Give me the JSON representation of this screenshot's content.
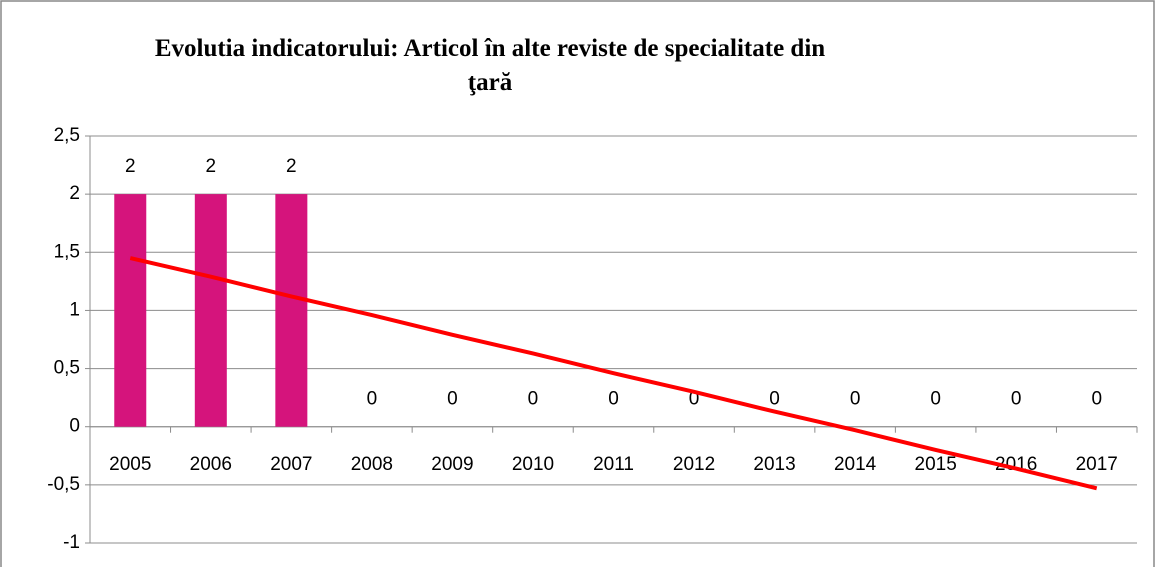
{
  "chart_data": {
    "type": "bar",
    "title": "Evolutia indicatorului: Articol în alte reviste de specialitate din ţară",
    "categories": [
      "2005",
      "2006",
      "2007",
      "2008",
      "2009",
      "2010",
      "2011",
      "2012",
      "2013",
      "2014",
      "2015",
      "2016",
      "2017"
    ],
    "values": [
      2,
      2,
      2,
      0,
      0,
      0,
      0,
      0,
      0,
      0,
      0,
      0,
      0
    ],
    "color": "#d5147c",
    "trend": {
      "color": "#ff0000",
      "values": [
        1.45,
        1.29,
        1.12,
        0.96,
        0.79,
        0.63,
        0.46,
        0.3,
        0.13,
        -0.03,
        -0.2,
        -0.36,
        -0.53
      ]
    },
    "ylim": [
      -1,
      2.5
    ],
    "yticks": [
      -1,
      {
        "value": -0.5,
        "label": "-0,5"
      },
      0,
      {
        "value": 0.5,
        "label": "0,5"
      },
      1,
      {
        "value": 1.5,
        "label": "1,5"
      },
      2,
      {
        "value": 2.5,
        "label": "2,5"
      }
    ],
    "grid": true
  }
}
